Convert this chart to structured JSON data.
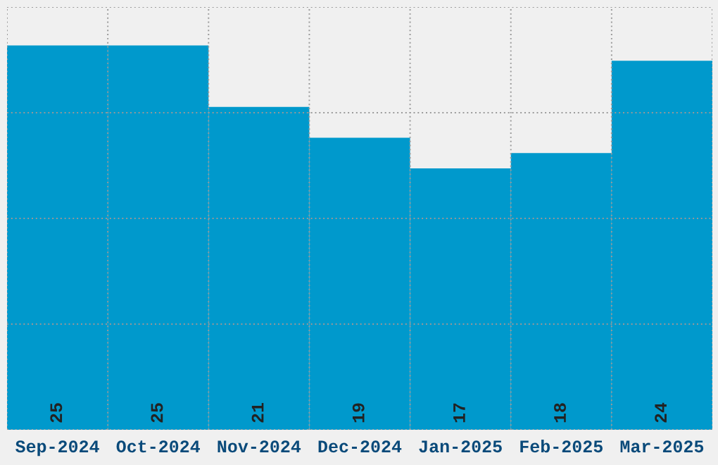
{
  "chart_data": {
    "type": "bar",
    "categories": [
      "Sep-2024",
      "Oct-2024",
      "Nov-2024",
      "Dec-2024",
      "Jan-2025",
      "Feb-2025",
      "Mar-2025"
    ],
    "values": [
      25,
      25,
      21,
      19,
      17,
      18,
      24
    ],
    "color": "#0099cc",
    "ylim": [
      0,
      27.5
    ],
    "tick_labels": "x",
    "data_labels": true,
    "grid": true
  }
}
